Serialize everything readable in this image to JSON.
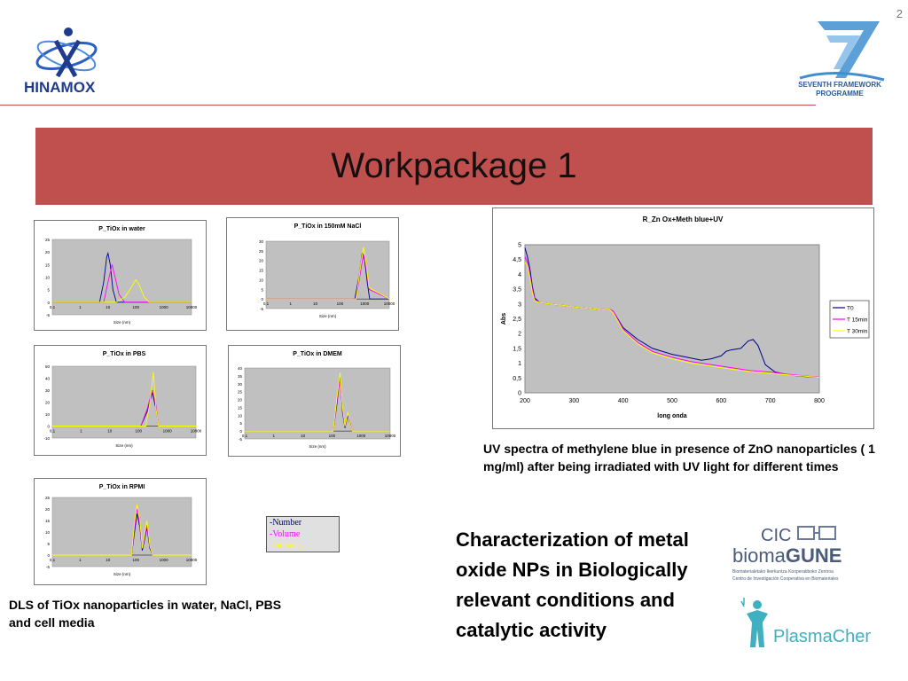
{
  "slide": {
    "number": "2",
    "title": "Workpackage 1",
    "logos": {
      "hinamox": "HINAMOX",
      "fp7_line1": "SEVENTH FRAMEWORK",
      "fp7_line2": "PROGRAMME",
      "cic_top": "CIC",
      "cic_main_1": "bioma",
      "cic_main_2": "GUNE",
      "cic_sub1": "Biomaterialetako Ikerkuntza Kooperatiboko Zentroa",
      "cic_sub2": "Centro de Investigación Cooperativa en Biomateriales",
      "plasmachem": "PlasmaChem"
    },
    "uv_caption": "UV spectra of methylene blue in presence of ZnO nanoparticles ( 1 mg/ml) after being irradiated with UV light for different times",
    "dls_caption": "DLS of TiOx nanoparticles in water, NaCl, PBS and cell media",
    "characterization": "Characterization of metal oxide NPs in Biologically relevant conditions and catalytic activity",
    "dls_legend": [
      "-Number",
      "-Volume",
      "-Intensity"
    ]
  },
  "colors": {
    "title_bar": "#c0504d",
    "plot_bg": "#c0c0c0",
    "number": "#00008b",
    "volume": "#ff00ff",
    "intensity": "#ffff00"
  },
  "chart_data": [
    {
      "type": "line",
      "title": "R_Zn Ox+Meth blue+UV",
      "xlabel": "long onda",
      "ylabel": "Abs",
      "xlim": [
        200,
        800
      ],
      "ylim": [
        0,
        5
      ],
      "x_ticks": [
        "200",
        "300",
        "400",
        "500",
        "600",
        "700",
        "800"
      ],
      "y_ticks": [
        "0",
        "0,5",
        "1",
        "1,5",
        "2",
        "2,5",
        "3",
        "3,5",
        "4",
        "4,5",
        "5"
      ],
      "legend": "right",
      "series": [
        {
          "name": "T0",
          "color": "#00008b",
          "x": [
            200,
            205,
            210,
            215,
            220,
            230,
            250,
            280,
            300,
            330,
            360,
            370,
            380,
            400,
            430,
            460,
            500,
            530,
            560,
            580,
            600,
            610,
            620,
            640,
            655,
            665,
            675,
            690,
            710,
            740,
            770,
            800
          ],
          "y": [
            4.9,
            4.6,
            4.2,
            3.6,
            3.2,
            3.05,
            3.0,
            2.95,
            2.9,
            2.85,
            2.8,
            2.85,
            2.75,
            2.2,
            1.8,
            1.5,
            1.3,
            1.2,
            1.1,
            1.15,
            1.25,
            1.4,
            1.45,
            1.5,
            1.75,
            1.8,
            1.6,
            0.95,
            0.7,
            0.6,
            0.55,
            0.52
          ]
        },
        {
          "name": "T 15min",
          "color": "#ff00ff",
          "x": [
            200,
            205,
            210,
            215,
            220,
            230,
            250,
            280,
            300,
            330,
            360,
            370,
            380,
            400,
            430,
            460,
            500,
            540,
            580,
            620,
            660,
            700,
            740,
            770,
            800
          ],
          "y": [
            4.6,
            4.4,
            4.0,
            3.5,
            3.15,
            3.05,
            3.0,
            2.95,
            2.9,
            2.85,
            2.8,
            2.85,
            2.75,
            2.15,
            1.7,
            1.4,
            1.2,
            1.05,
            0.95,
            0.85,
            0.75,
            0.7,
            0.62,
            0.57,
            0.53
          ]
        },
        {
          "name": "T 30min",
          "color": "#ffff00",
          "x": [
            200,
            205,
            210,
            215,
            220,
            230,
            250,
            280,
            300,
            330,
            360,
            370,
            380,
            400,
            430,
            460,
            500,
            540,
            580,
            620,
            660,
            700,
            740,
            770,
            800
          ],
          "y": [
            4.4,
            4.3,
            3.9,
            3.4,
            3.1,
            3.05,
            3.0,
            2.95,
            2.9,
            2.85,
            2.8,
            2.85,
            2.7,
            2.1,
            1.65,
            1.35,
            1.15,
            1.0,
            0.9,
            0.8,
            0.72,
            0.66,
            0.6,
            0.56,
            0.52
          ]
        }
      ]
    },
    {
      "type": "line",
      "title": "P_TiOx in water",
      "xlabel": "Size (nm)",
      "xscale": "log",
      "xlim": [
        0.1,
        10000
      ],
      "ylim": [
        -5,
        25
      ],
      "x_ticks": [
        "0,1",
        "1",
        "10",
        "100",
        "1000",
        "10000"
      ],
      "y_ticks": [
        "-5",
        "0",
        "5",
        "10",
        "15",
        "20",
        "25"
      ],
      "series": [
        {
          "name": "Number",
          "x": [
            0.1,
            5,
            7,
            9,
            10,
            12,
            15,
            20,
            10000
          ],
          "y": [
            0,
            0,
            8,
            18,
            19.5,
            15,
            5,
            0,
            0
          ]
        },
        {
          "name": "Volume",
          "x": [
            0.1,
            7,
            10,
            14,
            18,
            25,
            40,
            10000
          ],
          "y": [
            0,
            0,
            8,
            15,
            10,
            3,
            0,
            0
          ]
        },
        {
          "name": "Intensity",
          "x": [
            0.1,
            20,
            40,
            70,
            100,
            130,
            200,
            300,
            10000
          ],
          "y": [
            0,
            0,
            2,
            6,
            9,
            7,
            2,
            0,
            0
          ]
        }
      ]
    },
    {
      "type": "line",
      "title": "P_TiOx in 150mM NaCl",
      "xlabel": "Size (nm)",
      "xscale": "log",
      "xlim": [
        0.1,
        10000
      ],
      "ylim": [
        -5,
        30
      ],
      "x_ticks": [
        "0,1",
        "1",
        "10",
        "100",
        "1000",
        "10000"
      ],
      "y_ticks": [
        "-5",
        "0",
        "5",
        "10",
        "15",
        "20",
        "25",
        "30"
      ],
      "series": [
        {
          "name": "Number",
          "x": [
            0.1,
            400,
            600,
            800,
            1000,
            1300,
            1600,
            10000
          ],
          "y": [
            0,
            0,
            12,
            24,
            20,
            8,
            0,
            0
          ]
        },
        {
          "name": "Volume",
          "x": [
            0.1,
            450,
            700,
            900,
            1100,
            1500,
            10000
          ],
          "y": [
            0,
            0,
            15,
            23,
            18,
            5,
            0
          ]
        },
        {
          "name": "Intensity",
          "x": [
            0.1,
            450,
            700,
            900,
            1100,
            1500,
            10000
          ],
          "y": [
            0,
            0,
            18,
            27,
            20,
            6,
            0
          ]
        }
      ]
    },
    {
      "type": "line",
      "title": "P_TiOx in PBS",
      "xlabel": "Size (nm)",
      "xscale": "log",
      "xlim": [
        0.1,
        10000
      ],
      "ylim": [
        -10,
        50
      ],
      "x_ticks": [
        "0,1",
        "1",
        "10",
        "100",
        "1000",
        "10000"
      ],
      "y_ticks": [
        "-10",
        "0",
        "10",
        "20",
        "30",
        "40",
        "50"
      ],
      "series": [
        {
          "name": "Number",
          "x": [
            0.1,
            120,
            200,
            300,
            400,
            500,
            10000
          ],
          "y": [
            0,
            0,
            12,
            28,
            15,
            0,
            0
          ]
        },
        {
          "name": "Volume",
          "x": [
            0.1,
            120,
            200,
            300,
            400,
            500,
            10000
          ],
          "y": [
            0,
            0,
            14,
            30,
            18,
            0,
            0
          ]
        },
        {
          "name": "Intensity",
          "x": [
            0.1,
            180,
            250,
            330,
            400,
            500,
            10000
          ],
          "y": [
            0,
            0,
            20,
            45,
            15,
            0,
            0
          ]
        }
      ]
    },
    {
      "type": "line",
      "title": "P_TiOx in DMEM",
      "xlabel": "Size (nm)",
      "xscale": "log",
      "xlim": [
        0.1,
        10000
      ],
      "ylim": [
        -5,
        40
      ],
      "x_ticks": [
        "0,1",
        "1",
        "10",
        "100",
        "1000",
        "10000"
      ],
      "y_ticks": [
        "-5",
        "0",
        "5",
        "10",
        "15",
        "20",
        "25",
        "30",
        "35",
        "40"
      ],
      "series": [
        {
          "name": "Number",
          "x": [
            0.1,
            110,
            150,
            190,
            230,
            280,
            350,
            420,
            500,
            10000
          ],
          "y": [
            0,
            0,
            18,
            35,
            12,
            2,
            10,
            4,
            0,
            0
          ]
        },
        {
          "name": "Volume",
          "x": [
            0.1,
            110,
            150,
            190,
            230,
            280,
            350,
            420,
            500,
            10000
          ],
          "y": [
            0,
            0,
            20,
            33,
            14,
            3,
            11,
            5,
            0,
            0
          ]
        },
        {
          "name": "Intensity",
          "x": [
            0.1,
            110,
            150,
            190,
            230,
            280,
            350,
            420,
            500,
            10000
          ],
          "y": [
            0,
            0,
            22,
            37,
            15,
            3,
            12,
            4,
            0,
            0
          ]
        }
      ]
    },
    {
      "type": "line",
      "title": "P_TiOx in RPMI",
      "xlabel": "Size (nm)",
      "xscale": "log",
      "xlim": [
        0.1,
        10000
      ],
      "ylim": [
        -5,
        25
      ],
      "x_ticks": [
        "0,1",
        "1",
        "10",
        "100",
        "1000",
        "10000"
      ],
      "y_ticks": [
        "-5",
        "0",
        "5",
        "10",
        "15",
        "20",
        "25"
      ],
      "series": [
        {
          "name": "Number",
          "x": [
            0.1,
            70,
            90,
            110,
            140,
            170,
            200,
            250,
            320,
            400,
            10000
          ],
          "y": [
            0,
            0,
            10,
            18,
            12,
            2,
            6,
            12,
            3,
            0,
            0
          ]
        },
        {
          "name": "Volume",
          "x": [
            0.1,
            70,
            90,
            110,
            140,
            170,
            200,
            250,
            320,
            400,
            10000
          ],
          "y": [
            0,
            0,
            12,
            20,
            13,
            3,
            7,
            13,
            4,
            0,
            0
          ]
        },
        {
          "name": "Intensity",
          "x": [
            0.1,
            70,
            90,
            110,
            140,
            170,
            200,
            250,
            320,
            400,
            10000
          ],
          "y": [
            0,
            0,
            14,
            22,
            15,
            3,
            8,
            15,
            4,
            0,
            0
          ]
        }
      ]
    }
  ]
}
